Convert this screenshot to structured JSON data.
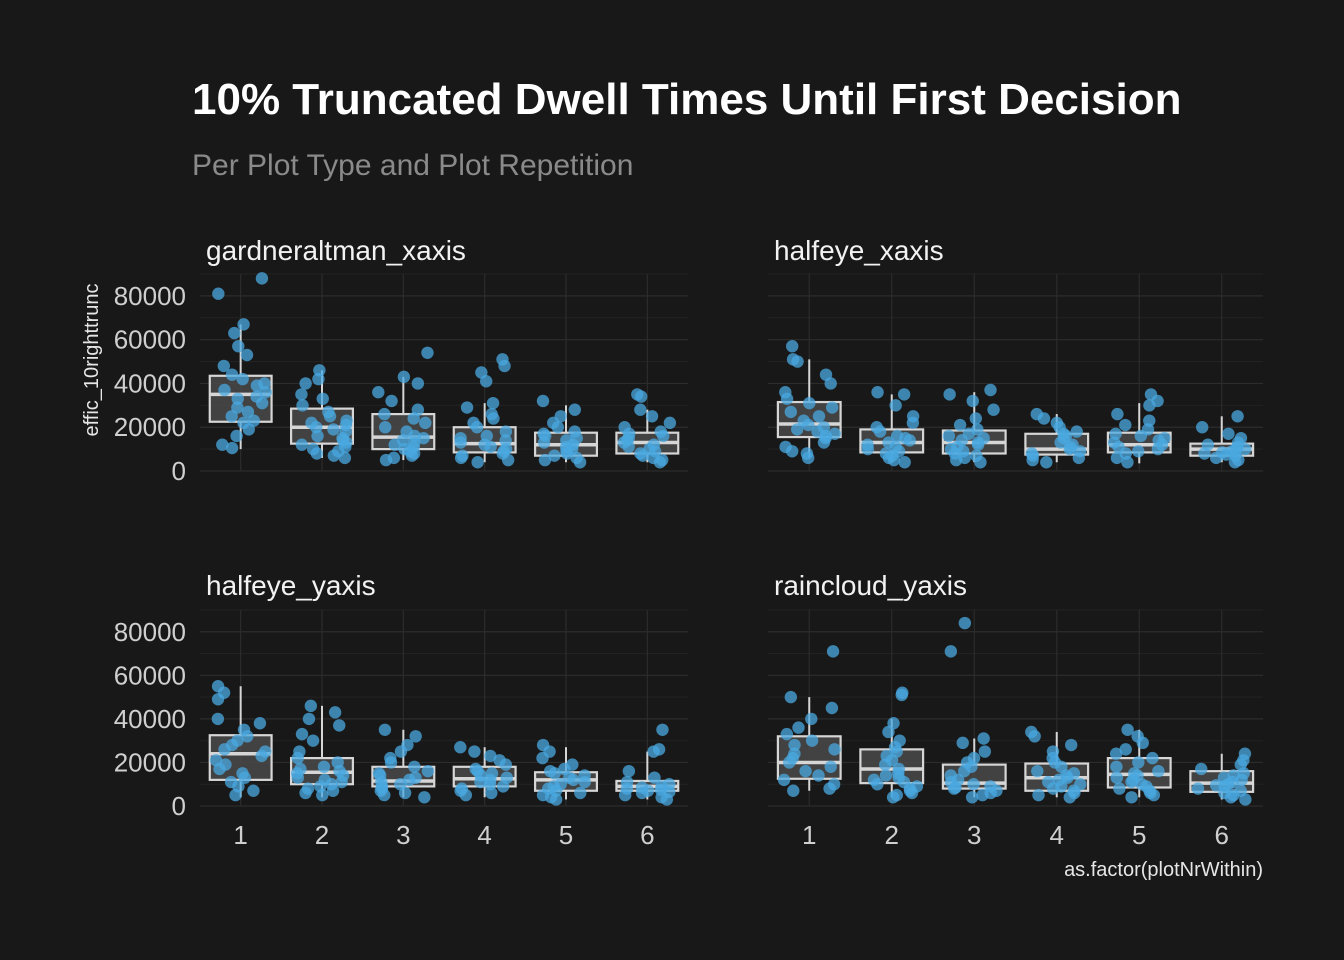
{
  "chart_data": {
    "type": "boxplot",
    "title": "10% Truncated Dwell Times Until First Decision",
    "subtitle": "Per Plot Type and Plot Repetition",
    "xlabel": "as.factor(plotNrWithin)",
    "ylabel": "effic_10righttrunc",
    "categories": [
      "1",
      "2",
      "3",
      "4",
      "5",
      "6"
    ],
    "ylim": [
      0,
      90000
    ],
    "y_ticks": [
      0,
      20000,
      40000,
      60000,
      80000
    ],
    "grid": true,
    "colors": {
      "background": "#181818",
      "points": "#4aa8e0",
      "box_fill": "#4a4a4a",
      "box_stroke": "#d6d6d6",
      "grid": "#2c2c2c"
    },
    "panels": [
      {
        "name": "gardneraltman_xaxis",
        "boxes": [
          {
            "q1": 22500,
            "median": 35000,
            "q3": 43500,
            "lower": 10000,
            "upper": 67000
          },
          {
            "q1": 12500,
            "median": 20000,
            "q3": 28500,
            "lower": 6000,
            "upper": 46000
          },
          {
            "q1": 10000,
            "median": 15500,
            "q3": 26000,
            "lower": 5000,
            "upper": 43000
          },
          {
            "q1": 8500,
            "median": 12500,
            "q3": 20000,
            "lower": 4000,
            "upper": 31000
          },
          {
            "q1": 7000,
            "median": 12000,
            "q3": 17500,
            "lower": 4000,
            "upper": 30000
          },
          {
            "q1": 8000,
            "median": 13000,
            "q3": 17500,
            "lower": 4000,
            "upper": 28000
          }
        ],
        "points": [
          [
            88000,
            81000,
            67000,
            63000,
            57000,
            53000,
            48000,
            44000,
            42000,
            40000,
            39000,
            37000,
            36000,
            34000,
            33000,
            31000,
            29000,
            27000,
            25000,
            23000,
            22000,
            19000,
            16000,
            12000,
            10500
          ],
          [
            46000,
            42000,
            40000,
            35000,
            33000,
            30000,
            27000,
            25000,
            23000,
            22000,
            21000,
            20000,
            19000,
            18000,
            16000,
            15000,
            14000,
            13000,
            12000,
            11000,
            10000,
            9000,
            8000,
            7000,
            6000
          ],
          [
            54000,
            43000,
            40000,
            36000,
            32000,
            28000,
            26000,
            24000,
            22000,
            20000,
            18000,
            16000,
            15000,
            14000,
            13000,
            12000,
            11000,
            10000,
            9000,
            8000,
            7000,
            6000,
            5000
          ],
          [
            51000,
            48000,
            45000,
            41000,
            31000,
            29000,
            26000,
            24000,
            22000,
            20000,
            18000,
            16000,
            15000,
            14000,
            13000,
            12000,
            11000,
            10000,
            9000,
            8000,
            7000,
            6000,
            5000,
            4000
          ],
          [
            32000,
            28000,
            25000,
            22000,
            20000,
            18000,
            17000,
            16000,
            15000,
            14000,
            13000,
            12000,
            11000,
            10000,
            9000,
            8000,
            7000,
            6000,
            5000,
            4000
          ],
          [
            35000,
            34000,
            28000,
            25000,
            22000,
            20000,
            18000,
            17000,
            16000,
            15000,
            14000,
            13000,
            12000,
            11000,
            10000,
            9000,
            8000,
            7000,
            6000,
            5000,
            4000
          ]
        ]
      },
      {
        "name": "halfeye_xaxis",
        "boxes": [
          {
            "q1": 15500,
            "median": 21500,
            "q3": 31500,
            "lower": 6000,
            "upper": 51000
          },
          {
            "q1": 8500,
            "median": 13000,
            "q3": 19000,
            "lower": 4000,
            "upper": 35000
          },
          {
            "q1": 8000,
            "median": 13000,
            "q3": 18500,
            "lower": 4000,
            "upper": 36000
          },
          {
            "q1": 7500,
            "median": 10000,
            "q3": 17000,
            "lower": 4000,
            "upper": 26000
          },
          {
            "q1": 8500,
            "median": 12000,
            "q3": 17500,
            "lower": 3500,
            "upper": 31000
          },
          {
            "q1": 7000,
            "median": 10000,
            "q3": 12500,
            "lower": 4000,
            "upper": 25000
          }
        ],
        "points": [
          [
            57000,
            51000,
            50000,
            44000,
            40000,
            36000,
            33000,
            31000,
            29000,
            27000,
            25000,
            23000,
            21000,
            20000,
            19000,
            18000,
            17000,
            16000,
            15000,
            13000,
            11000,
            9000,
            8000,
            6000
          ],
          [
            36000,
            35000,
            30000,
            25000,
            22000,
            20000,
            18000,
            16000,
            15000,
            14000,
            13000,
            12000,
            11000,
            10000,
            9000,
            8000,
            7000,
            6000,
            5000,
            4000
          ],
          [
            37000,
            35000,
            32000,
            28000,
            24000,
            21000,
            19000,
            17000,
            16000,
            15000,
            14000,
            13000,
            12000,
            11000,
            10000,
            9000,
            8000,
            7000,
            6000,
            5000,
            4000
          ],
          [
            26000,
            24000,
            22000,
            20000,
            18000,
            17000,
            16000,
            15000,
            13000,
            12000,
            11000,
            10000,
            9000,
            8000,
            7000,
            6000,
            5000,
            4000
          ],
          [
            35000,
            32000,
            30000,
            26000,
            23000,
            21000,
            19000,
            17000,
            16000,
            15000,
            14000,
            13000,
            12000,
            11000,
            10000,
            9000,
            8000,
            6000,
            4000
          ],
          [
            25000,
            20000,
            17000,
            15000,
            13000,
            12000,
            11000,
            10000,
            9500,
            9000,
            8500,
            8000,
            7500,
            7000,
            6000,
            5000,
            4000
          ]
        ]
      },
      {
        "name": "halfeye_yaxis",
        "boxes": [
          {
            "q1": 12000,
            "median": 24000,
            "q3": 32500,
            "lower": 4000,
            "upper": 55000
          },
          {
            "q1": 10000,
            "median": 15500,
            "q3": 22000,
            "lower": 4000,
            "upper": 46000
          },
          {
            "q1": 9000,
            "median": 11500,
            "q3": 18000,
            "lower": 4000,
            "upper": 35000
          },
          {
            "q1": 9000,
            "median": 12500,
            "q3": 18000,
            "lower": 4000,
            "upper": 27000
          },
          {
            "q1": 7000,
            "median": 12000,
            "q3": 15500,
            "lower": 3000,
            "upper": 27000
          },
          {
            "q1": 7000,
            "median": 9000,
            "q3": 11500,
            "lower": 3000,
            "upper": 25000
          }
        ],
        "points": [
          [
            55000,
            52000,
            49000,
            40000,
            38000,
            35000,
            32000,
            30000,
            28000,
            26000,
            25000,
            23000,
            21000,
            19000,
            17000,
            15000,
            13000,
            11000,
            9000,
            7000,
            5000
          ],
          [
            46000,
            43000,
            40000,
            37000,
            33000,
            30000,
            25000,
            22000,
            20000,
            18000,
            17000,
            16000,
            15000,
            14000,
            13000,
            12000,
            11000,
            10000,
            9000,
            8000,
            7000,
            6000,
            5000
          ],
          [
            35000,
            32000,
            28000,
            25000,
            22000,
            20000,
            18000,
            16000,
            15000,
            14000,
            13000,
            12000,
            11000,
            10000,
            9000,
            8000,
            7000,
            6000,
            5000,
            4000
          ],
          [
            27000,
            25000,
            23000,
            21000,
            19000,
            17000,
            16000,
            15000,
            14000,
            13000,
            12000,
            11000,
            10000,
            9000,
            8000,
            7000,
            6000,
            5000
          ],
          [
            28000,
            25000,
            22000,
            19000,
            17000,
            16000,
            15000,
            14000,
            13000,
            12000,
            11000,
            10000,
            9000,
            8000,
            7000,
            6000,
            5000,
            4000,
            3000
          ],
          [
            35000,
            26000,
            25000,
            16000,
            13000,
            11000,
            10000,
            9000,
            8500,
            8000,
            7500,
            7000,
            6500,
            6000,
            5000,
            4000,
            3000
          ]
        ]
      },
      {
        "name": "raincloud_yaxis",
        "boxes": [
          {
            "q1": 12500,
            "median": 20000,
            "q3": 32000,
            "lower": 7000,
            "upper": 50000
          },
          {
            "q1": 10500,
            "median": 17000,
            "q3": 26000,
            "lower": 4000,
            "upper": 40000
          },
          {
            "q1": 8000,
            "median": 10500,
            "q3": 19000,
            "lower": 4000,
            "upper": 31000
          },
          {
            "q1": 7000,
            "median": 13000,
            "q3": 19500,
            "lower": 4000,
            "upper": 34000
          },
          {
            "q1": 8500,
            "median": 14500,
            "q3": 22000,
            "lower": 4000,
            "upper": 35000
          },
          {
            "q1": 6500,
            "median": 10500,
            "q3": 16000,
            "lower": 3000,
            "upper": 24000
          }
        ],
        "points": [
          [
            71000,
            50000,
            45000,
            40000,
            36000,
            33000,
            30000,
            28000,
            26000,
            24000,
            22000,
            20000,
            18000,
            16000,
            14000,
            12000,
            10000,
            8000,
            7000
          ],
          [
            52000,
            51000,
            38000,
            34000,
            30000,
            27000,
            25000,
            23000,
            21000,
            19000,
            17000,
            15000,
            14000,
            13000,
            12000,
            11000,
            10000,
            9000,
            8000,
            7000,
            6000,
            5000,
            4000
          ],
          [
            84000,
            71000,
            31000,
            29000,
            25000,
            22000,
            20000,
            18000,
            16000,
            14000,
            12000,
            11000,
            10000,
            9000,
            8500,
            8000,
            7000,
            6000,
            5000,
            4000
          ],
          [
            34000,
            32000,
            28000,
            25000,
            22000,
            20000,
            18000,
            16000,
            15000,
            14000,
            13000,
            12000,
            11000,
            10000,
            9000,
            8000,
            7000,
            6000,
            5000,
            4000
          ],
          [
            35000,
            32000,
            29000,
            26000,
            24000,
            22000,
            20000,
            18000,
            16000,
            15000,
            14000,
            13000,
            12000,
            11000,
            10000,
            9000,
            8000,
            7000,
            6000,
            5000,
            4000
          ],
          [
            24000,
            21000,
            19000,
            17000,
            15000,
            14000,
            13000,
            12000,
            11000,
            10000,
            9500,
            9000,
            8000,
            7000,
            6000,
            5000,
            4000,
            3000
          ]
        ]
      }
    ]
  }
}
